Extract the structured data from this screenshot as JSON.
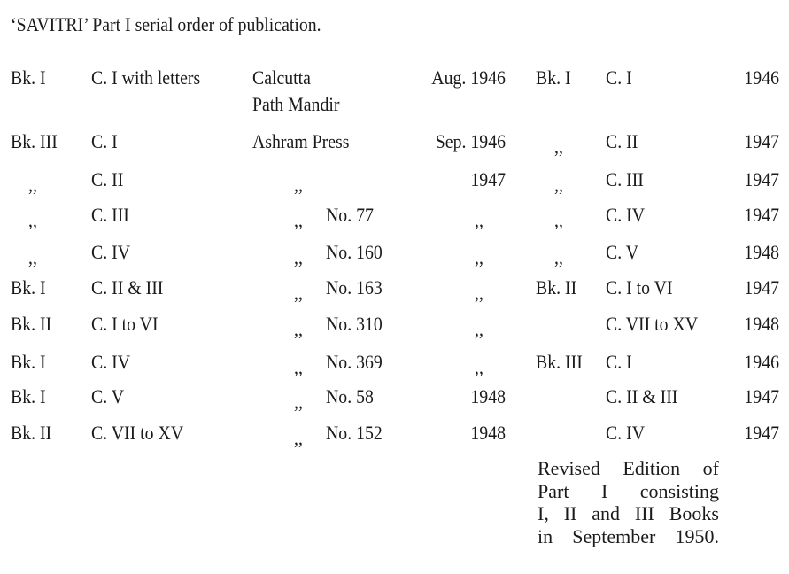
{
  "title": "‘SAVITRI’ Part I serial order of publication.",
  "left_table": [
    {
      "book": "Bk. I",
      "canto": "C. I with letters",
      "press": "Calcutta",
      "press_line2": "Path Mandir",
      "ditto": "",
      "number": "",
      "date": "Aug. 1946"
    },
    {
      "book": "Bk. III",
      "canto": "C. I",
      "press": "Ashram Press",
      "ditto": "",
      "number": "",
      "date": "Sep. 1946"
    },
    {
      "book": ",,",
      "canto": "C. II",
      "press": "",
      "ditto": ",,",
      "number": "",
      "date": "1947"
    },
    {
      "book": ",,",
      "canto": "C. III",
      "press": "",
      "ditto": ",,",
      "number": "No.  77",
      "date": ",,"
    },
    {
      "book": ",,",
      "canto": "C. IV",
      "press": "",
      "ditto": ",,",
      "number": "No. 160",
      "date": ",,"
    },
    {
      "book": "Bk. I",
      "canto": "C. II & III",
      "press": "",
      "ditto": ",,",
      "number": "No. 163",
      "date": ",,"
    },
    {
      "book": "Bk. II",
      "canto": "C. I to VI",
      "press": "",
      "ditto": ",,",
      "number": "No. 310",
      "date": ",,"
    },
    {
      "book": "Bk. I",
      "canto": "C. IV",
      "press": "",
      "ditto": ",,",
      "number": "No. 369",
      "date": ",,"
    },
    {
      "book": "Bk. I",
      "canto": "C. V",
      "press": "",
      "ditto": ",,",
      "number": "No.  58",
      "date": "1948"
    },
    {
      "book": "Bk. II",
      "canto": "C. VII to XV",
      "press": "",
      "ditto": ",,",
      "number": "No. 152",
      "date": "1948"
    }
  ],
  "right_table": [
    {
      "book": "Bk. I",
      "canto": "C. I",
      "year": "1946"
    },
    {
      "book": ",,",
      "canto": "C. II",
      "year": "1947"
    },
    {
      "book": ",,",
      "canto": "C. III",
      "year": "1947"
    },
    {
      "book": ",,",
      "canto": "C. IV",
      "year": "1947"
    },
    {
      "book": ",,",
      "canto": "C. V",
      "year": "1948"
    },
    {
      "book": "Bk. II",
      "canto": "C. I to VI",
      "year": "1947"
    },
    {
      "book": "",
      "canto": "C. VII to XV",
      "year": "1948"
    },
    {
      "book": "Bk. III",
      "canto": "C. I",
      "year": "1946"
    },
    {
      "book": "",
      "canto": "C. II & III",
      "year": "1947"
    },
    {
      "book": "",
      "canto": "C. IV",
      "year": "1947"
    }
  ],
  "note": [
    "Revised Edition of",
    "Part I consisting",
    "I, II and III Books",
    "in September 1950."
  ]
}
